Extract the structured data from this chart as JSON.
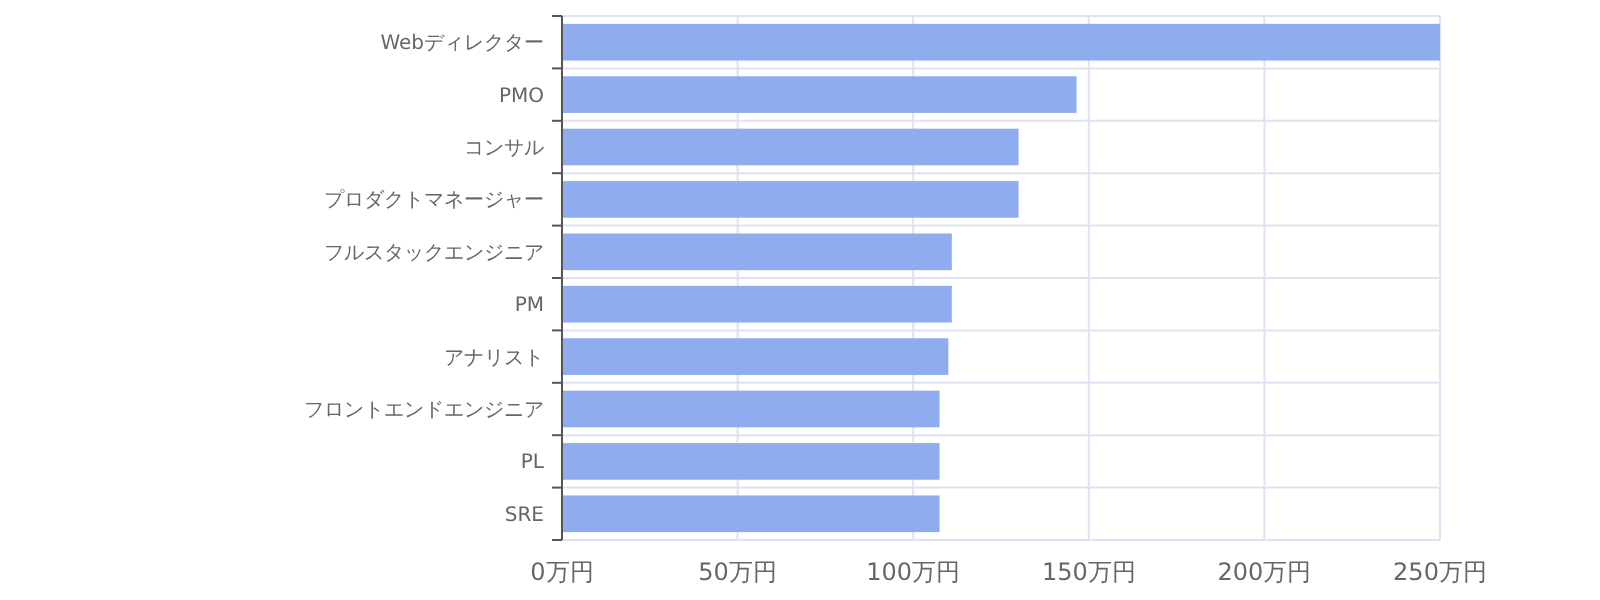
{
  "chart_data": {
    "type": "bar",
    "orientation": "horizontal",
    "categories": [
      "Webディレクター",
      "PMO",
      "コンサル",
      "プロダクトマネージャー",
      "フルスタックエンジニア",
      "PM",
      "アナリスト",
      "フロントエンドエンジニア",
      "PL",
      "SRE"
    ],
    "values": [
      250,
      146.5,
      130,
      130,
      111,
      111,
      110,
      107.5,
      107.5,
      107.5
    ],
    "color": "#8fadee",
    "xlim": [
      0,
      250
    ],
    "xticks": [
      {
        "value": 0,
        "label": "0万円"
      },
      {
        "value": 50,
        "label": "50万円"
      },
      {
        "value": 100,
        "label": "100万円"
      },
      {
        "value": 150,
        "label": "150万円"
      },
      {
        "value": 200,
        "label": "200万円"
      },
      {
        "value": 250,
        "label": "250万円"
      }
    ],
    "grid": true
  }
}
